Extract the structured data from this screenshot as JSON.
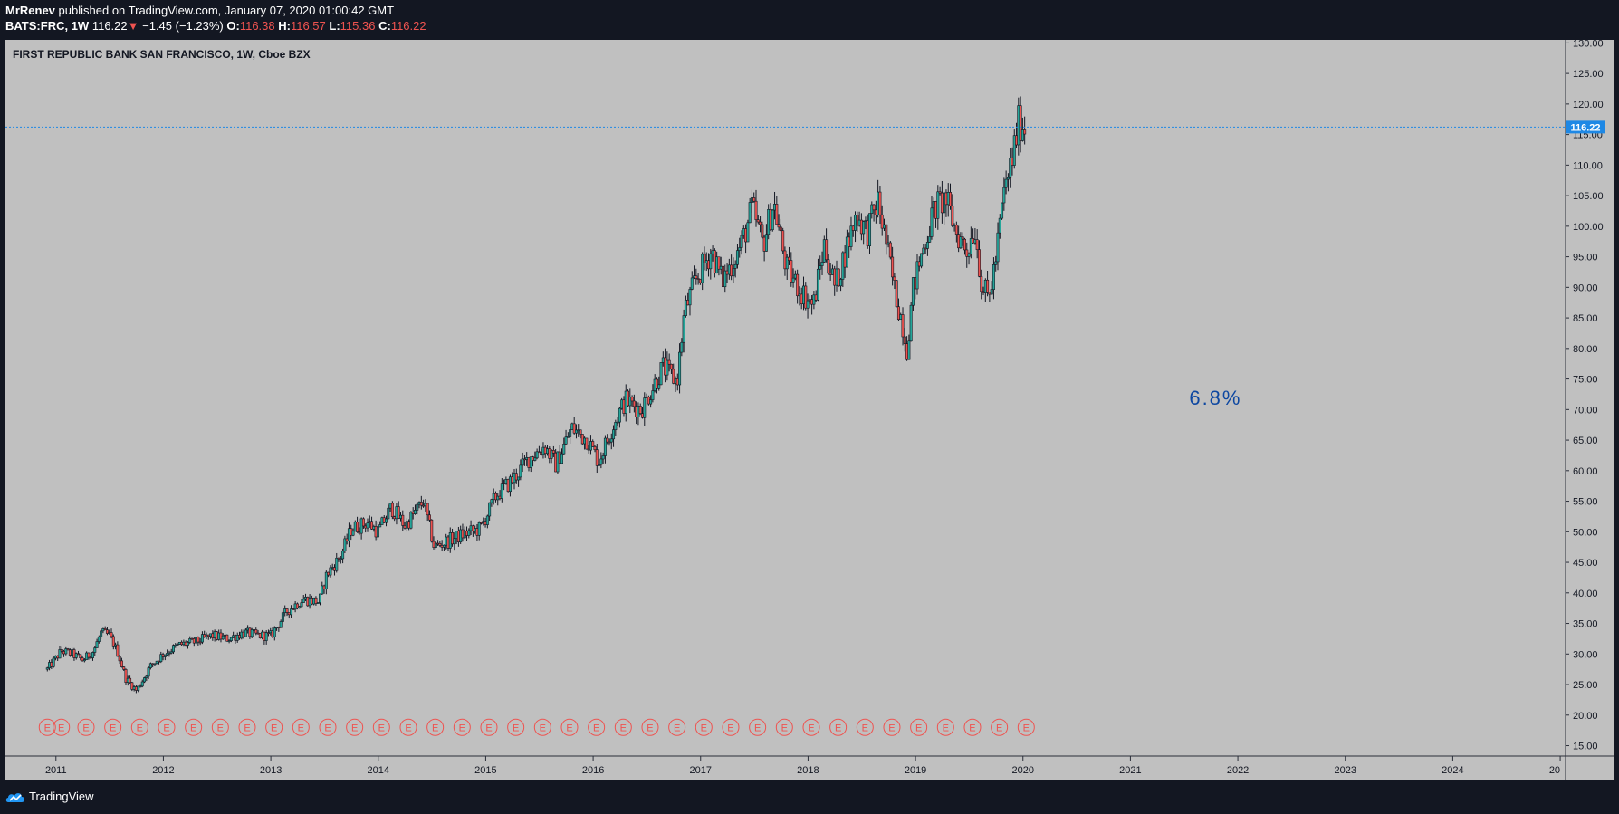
{
  "header": {
    "author": "MrRenev",
    "published_text": "published on TradingView.com, January 07, 2020 01:00:42 GMT",
    "symbol": "BATS:FRC, 1W",
    "last": "116.22",
    "down_arrow": "▼",
    "change": "−1.45 (−1.23%)",
    "o_label": "O:",
    "o_value": "116.38",
    "h_label": "H:",
    "h_value": "116.57",
    "l_label": "L:",
    "l_value": "115.36",
    "c_label": "C:",
    "c_value": "116.22"
  },
  "footer": {
    "brand": "TradingView"
  },
  "colors": {
    "background": "#131722",
    "plot_background": "#c0c0c0",
    "up_candle": "#26a69a",
    "down_candle": "#ef5350",
    "last_price_line": "#1e88e5",
    "earnings_marker": "#ef5350",
    "annotation": "#0d47a1"
  },
  "chart_data": {
    "type": "candlestick",
    "title": "FIRST REPUBLIC BANK SAN FRANCISCO, 1W, Cboe BZX",
    "x_ticks": [
      "2011",
      "2012",
      "2013",
      "2014",
      "2015",
      "2016",
      "2017",
      "2018",
      "2019",
      "2020",
      "2021",
      "2022",
      "2023",
      "2024",
      "20"
    ],
    "y_ticks": [
      "15.00",
      "20.00",
      "25.00",
      "30.00",
      "35.00",
      "40.00",
      "45.00",
      "50.00",
      "55.00",
      "60.00",
      "65.00",
      "70.00",
      "75.00",
      "80.00",
      "85.00",
      "90.00",
      "95.00",
      "100.00",
      "105.00",
      "110.00",
      "115.00",
      "120.00",
      "125.00",
      "130.00"
    ],
    "ylim": [
      13.3,
      130.5
    ],
    "xlim": [
      2010.53,
      2025.05
    ],
    "last_price": 116.22,
    "last_price_label": "116.22",
    "annotation_text": "6.8%",
    "annotation_position": {
      "year": 2021.8,
      "price": 72
    },
    "earnings_marker_label": "E",
    "earnings_marker_price": 18.0,
    "earnings_markers": [
      2010.92,
      2011.05,
      2011.28,
      2011.53,
      2011.78,
      2012.03,
      2012.28,
      2012.53,
      2012.78,
      2013.03,
      2013.28,
      2013.53,
      2013.78,
      2014.03,
      2014.28,
      2014.53,
      2014.78,
      2015.03,
      2015.28,
      2015.53,
      2015.78,
      2016.03,
      2016.28,
      2016.53,
      2016.78,
      2017.03,
      2017.28,
      2017.53,
      2017.78,
      2018.03,
      2018.28,
      2018.53,
      2018.78,
      2019.03,
      2019.28,
      2019.53,
      2019.78,
      2020.03
    ],
    "price_path": [
      [
        2010.92,
        27.5
      ],
      [
        2011.05,
        30.5
      ],
      [
        2011.15,
        30.0
      ],
      [
        2011.25,
        29.0
      ],
      [
        2011.35,
        30.5
      ],
      [
        2011.42,
        33.5
      ],
      [
        2011.5,
        33.0
      ],
      [
        2011.58,
        30.0
      ],
      [
        2011.65,
        26.0
      ],
      [
        2011.75,
        24.0
      ],
      [
        2011.88,
        28.0
      ],
      [
        2012.0,
        30.0
      ],
      [
        2012.15,
        31.5
      ],
      [
        2012.3,
        32.0
      ],
      [
        2012.45,
        33.0
      ],
      [
        2012.6,
        32.5
      ],
      [
        2012.75,
        33.5
      ],
      [
        2012.9,
        33.0
      ],
      [
        2013.0,
        33.0
      ],
      [
        2013.15,
        37.0
      ],
      [
        2013.3,
        39.0
      ],
      [
        2013.45,
        38.5
      ],
      [
        2013.52,
        43.0
      ],
      [
        2013.65,
        46.0
      ],
      [
        2013.75,
        50.5
      ],
      [
        2013.9,
        51.5
      ],
      [
        2014.0,
        50.0
      ],
      [
        2014.12,
        54.0
      ],
      [
        2014.25,
        51.0
      ],
      [
        2014.42,
        55.0
      ],
      [
        2014.52,
        47.5
      ],
      [
        2014.65,
        48.5
      ],
      [
        2014.78,
        49.5
      ],
      [
        2014.95,
        50.5
      ],
      [
        2015.1,
        56.0
      ],
      [
        2015.25,
        58.5
      ],
      [
        2015.4,
        62.0
      ],
      [
        2015.55,
        64.0
      ],
      [
        2015.65,
        61.0
      ],
      [
        2015.8,
        67.0
      ],
      [
        2015.95,
        65.0
      ],
      [
        2016.05,
        61.5
      ],
      [
        2016.2,
        68.0
      ],
      [
        2016.3,
        71.5
      ],
      [
        2016.45,
        70.0
      ],
      [
        2016.55,
        73.5
      ],
      [
        2016.65,
        77.0
      ],
      [
        2016.78,
        74.5
      ],
      [
        2016.85,
        86.0
      ],
      [
        2016.95,
        91.0
      ],
      [
        2017.1,
        96.0
      ],
      [
        2017.2,
        91.0
      ],
      [
        2017.38,
        97.0
      ],
      [
        2017.48,
        103.0
      ],
      [
        2017.58,
        97.0
      ],
      [
        2017.68,
        104.0
      ],
      [
        2017.8,
        93.0
      ],
      [
        2017.95,
        89.0
      ],
      [
        2018.05,
        87.0
      ],
      [
        2018.15,
        97.0
      ],
      [
        2018.25,
        90.0
      ],
      [
        2018.35,
        96.0
      ],
      [
        2018.45,
        102.0
      ],
      [
        2018.55,
        99.0
      ],
      [
        2018.65,
        104.0
      ],
      [
        2018.72,
        98.0
      ],
      [
        2018.8,
        90.0
      ],
      [
        2018.88,
        84.0
      ],
      [
        2018.92,
        80.0
      ],
      [
        2018.98,
        90.0
      ],
      [
        2019.08,
        97.0
      ],
      [
        2019.18,
        103.0
      ],
      [
        2019.28,
        104.5
      ],
      [
        2019.38,
        99.0
      ],
      [
        2019.48,
        96.0
      ],
      [
        2019.55,
        100.0
      ],
      [
        2019.62,
        90.0
      ],
      [
        2019.68,
        88.0
      ],
      [
        2019.75,
        95.0
      ],
      [
        2019.82,
        105.0
      ],
      [
        2019.9,
        111.0
      ],
      [
        2019.96,
        117.0
      ],
      [
        2020.02,
        116.22
      ]
    ]
  }
}
